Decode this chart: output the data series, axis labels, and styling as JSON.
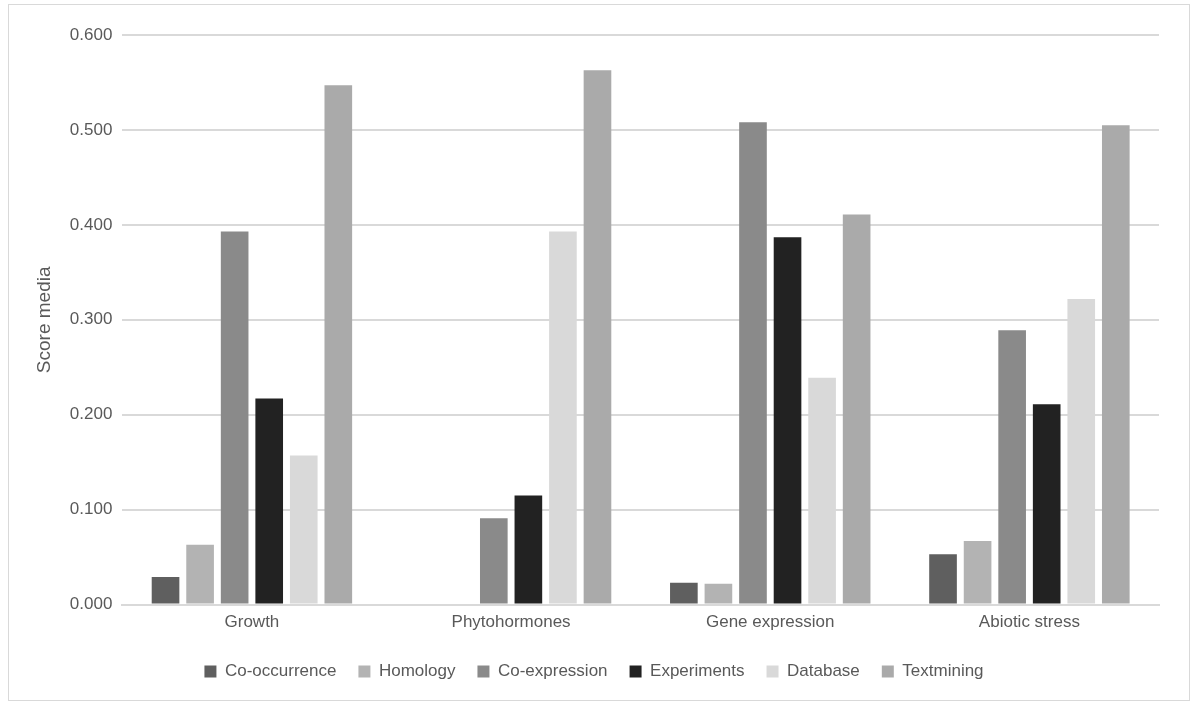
{
  "chart_data": {
    "type": "bar",
    "ylabel": "Score media",
    "categories": [
      "Growth",
      "Phytohormones",
      "Gene expression",
      "Abiotic stress"
    ],
    "series": [
      {
        "name": "Co-occurrence",
        "color": "#5f5f5f",
        "values": [
          0.029,
          0,
          0.023,
          0.053
        ]
      },
      {
        "name": "Homology",
        "color": "#b3b3b3",
        "values": [
          0.063,
          0,
          0.022,
          0.067
        ]
      },
      {
        "name": "Co-expression",
        "color": "#8a8a8a",
        "values": [
          0.393,
          0.091,
          0.508,
          0.289
        ]
      },
      {
        "name": "Experiments",
        "color": "#222222",
        "values": [
          0.217,
          0.115,
          0.387,
          0.211
        ]
      },
      {
        "name": "Database",
        "color": "#d9d9d9",
        "values": [
          0.157,
          0.393,
          0.239,
          0.322
        ]
      },
      {
        "name": "Textmining",
        "color": "#aaaaaa",
        "values": [
          0.547,
          0.563,
          0.411,
          0.505
        ]
      }
    ],
    "ylim": [
      0,
      0.6
    ],
    "yticks": [
      {
        "value": 0,
        "label": "0.000"
      },
      {
        "value": 0.1,
        "label": "0.100"
      },
      {
        "value": 0.2,
        "label": "0.200"
      },
      {
        "value": 0.3,
        "label": "0.300"
      },
      {
        "value": 0.4,
        "label": "0.400"
      },
      {
        "value": 0.5,
        "label": "0.500"
      },
      {
        "value": 0.6,
        "label": "0.600"
      }
    ],
    "grid": "y",
    "legend": "bottom"
  }
}
